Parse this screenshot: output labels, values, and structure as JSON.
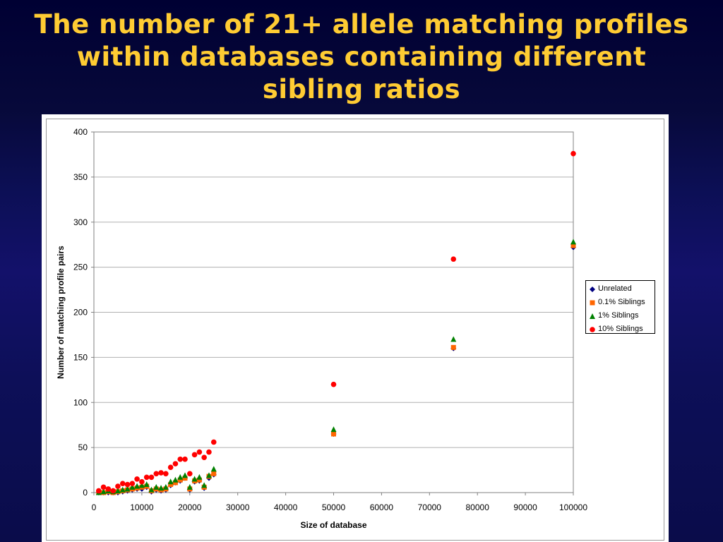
{
  "slide": {
    "title_lines": [
      "The number of 21+ allele matching profiles",
      "within databases containing different",
      "sibling ratios"
    ]
  },
  "colors": {
    "title": "#ffcc33",
    "unrelated": "#000080",
    "sib_0_1": "#ff6600",
    "sib_1": "#008000",
    "sib_10": "#ff0000"
  },
  "chart_data": {
    "type": "scatter",
    "title": "",
    "xlabel": "Size of database",
    "ylabel": "Number of matching profile pairs",
    "xlim": [
      0,
      100000
    ],
    "ylim": [
      0,
      400
    ],
    "xticks": [
      0,
      10000,
      20000,
      30000,
      40000,
      50000,
      60000,
      70000,
      80000,
      90000,
      100000
    ],
    "yticks": [
      0,
      50,
      100,
      150,
      200,
      250,
      300,
      350,
      400
    ],
    "grid": "horizontal",
    "legend_position": "right",
    "series": [
      {
        "name": "Unrelated",
        "marker": "diamond",
        "color": "#000080",
        "x": [
          1000,
          2000,
          3000,
          4000,
          5000,
          6000,
          7000,
          8000,
          9000,
          10000,
          11000,
          12000,
          13000,
          14000,
          15000,
          16000,
          17000,
          18000,
          19000,
          20000,
          21000,
          22000,
          23000,
          24000,
          25000,
          50000,
          75000,
          100000
        ],
        "y": [
          0,
          0,
          0,
          0,
          0,
          1,
          2,
          3,
          4,
          4,
          6,
          1,
          3,
          2,
          3,
          8,
          11,
          13,
          16,
          3,
          12,
          13,
          5,
          16,
          20,
          65,
          160,
          272
        ]
      },
      {
        "name": "0.1% Siblings",
        "marker": "square",
        "color": "#ff6600",
        "x": [
          1000,
          2000,
          3000,
          4000,
          5000,
          6000,
          7000,
          8000,
          9000,
          10000,
          11000,
          12000,
          13000,
          14000,
          15000,
          16000,
          17000,
          18000,
          19000,
          20000,
          21000,
          22000,
          23000,
          24000,
          25000,
          50000,
          75000,
          100000
        ],
        "y": [
          0,
          0,
          1,
          0,
          1,
          2,
          3,
          4,
          5,
          6,
          7,
          2,
          4,
          3,
          4,
          9,
          11,
          14,
          16,
          4,
          13,
          14,
          6,
          18,
          21,
          65,
          161,
          274
        ]
      },
      {
        "name": "1% Siblings",
        "marker": "triangle",
        "color": "#008000",
        "x": [
          1000,
          2000,
          3000,
          4000,
          5000,
          6000,
          7000,
          8000,
          9000,
          10000,
          11000,
          12000,
          13000,
          14000,
          15000,
          16000,
          17000,
          18000,
          19000,
          20000,
          21000,
          22000,
          23000,
          24000,
          25000,
          50000,
          75000,
          100000
        ],
        "y": [
          0,
          1,
          2,
          1,
          2,
          3,
          4,
          6,
          7,
          8,
          9,
          3,
          6,
          5,
          6,
          12,
          14,
          17,
          19,
          6,
          15,
          17,
          8,
          19,
          26,
          70,
          170,
          278
        ]
      },
      {
        "name": "10% Siblings",
        "marker": "circle",
        "color": "#ff0000",
        "x": [
          1000,
          2000,
          3000,
          4000,
          5000,
          6000,
          7000,
          8000,
          9000,
          10000,
          11000,
          12000,
          13000,
          14000,
          15000,
          16000,
          17000,
          18000,
          19000,
          20000,
          21000,
          22000,
          23000,
          24000,
          25000,
          50000,
          75000,
          100000
        ],
        "y": [
          2,
          6,
          4,
          2,
          7,
          10,
          9,
          10,
          15,
          12,
          17,
          17,
          21,
          22,
          21,
          28,
          32,
          37,
          37,
          21,
          42,
          45,
          39,
          45,
          56,
          120,
          259,
          376
        ]
      }
    ]
  }
}
